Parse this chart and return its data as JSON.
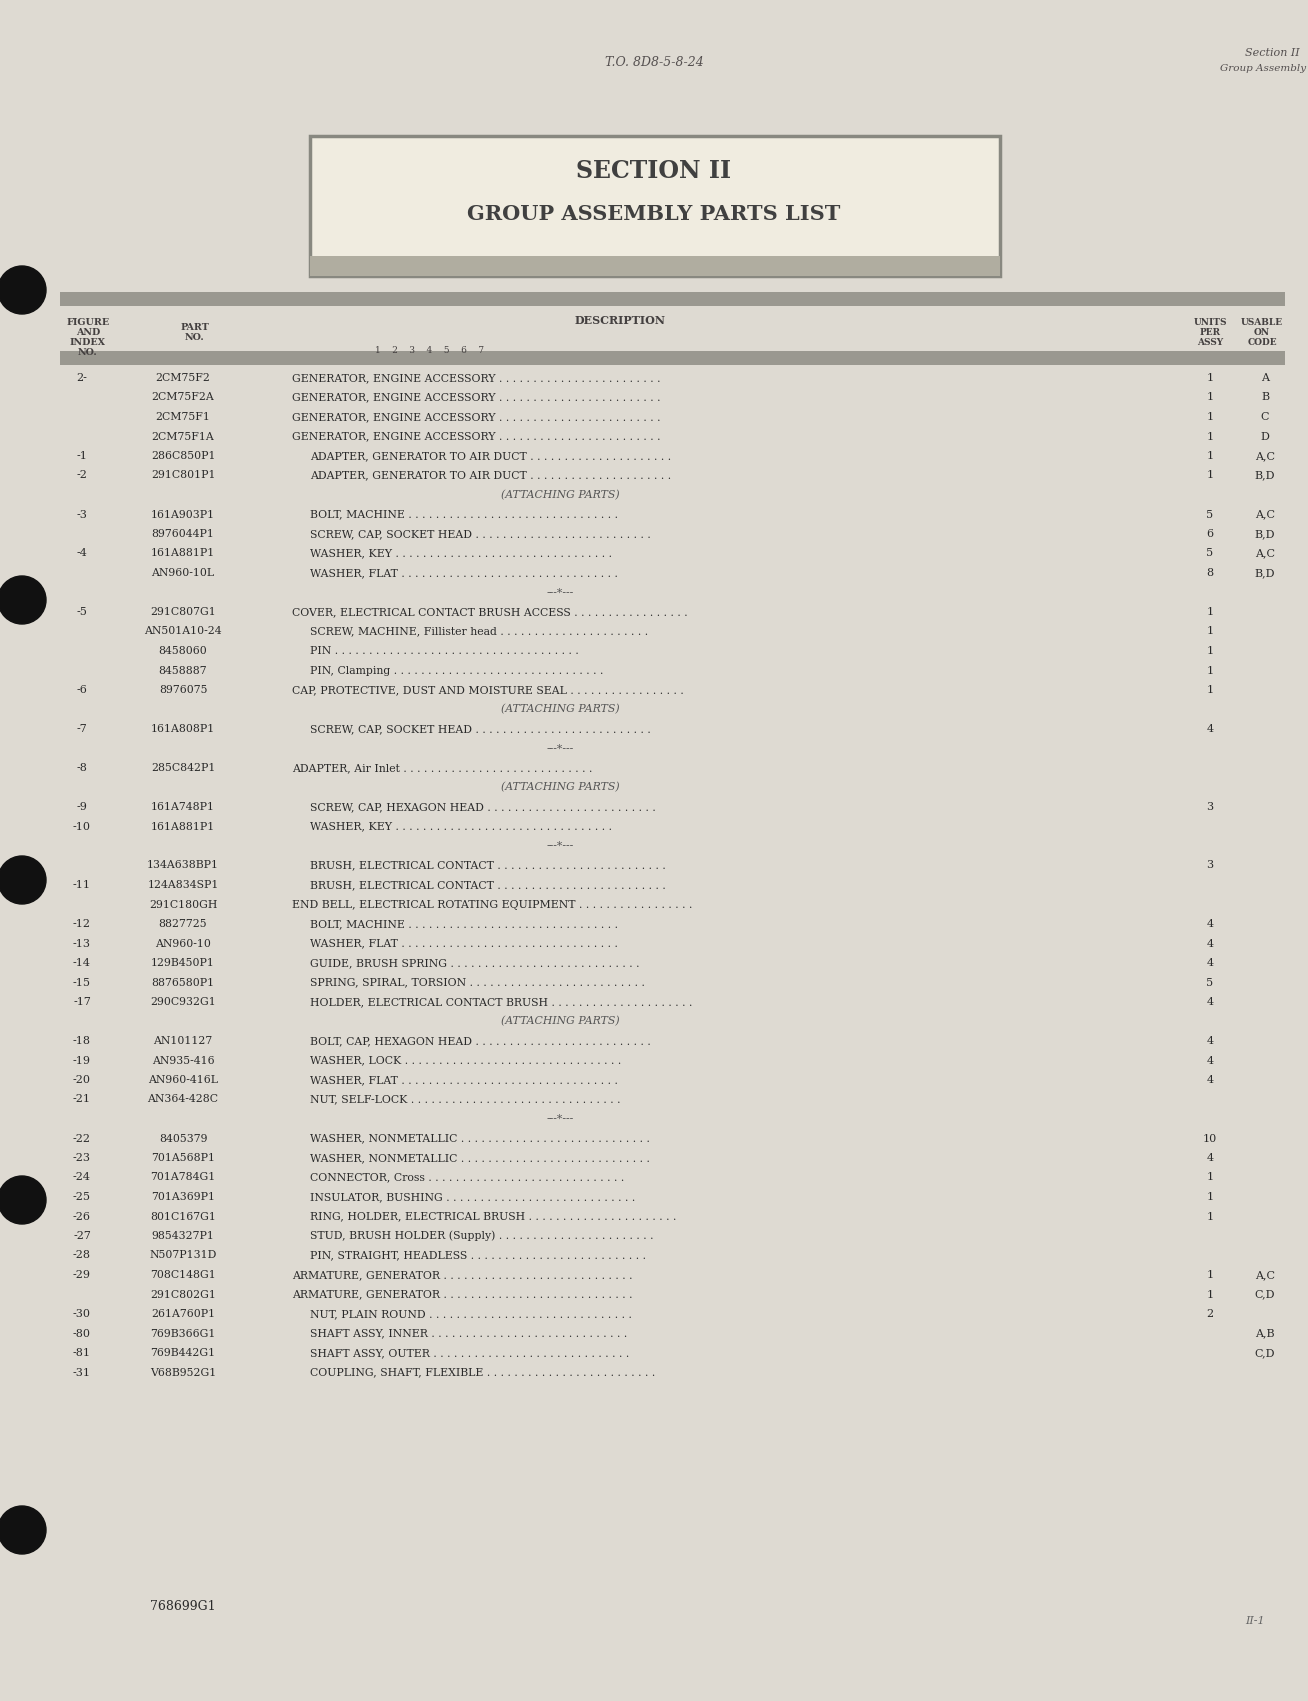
{
  "page_color": "#dedad2",
  "header_center": "T.O. 8D8-5-8-24",
  "header_right_line1": "Section II",
  "header_right_line2": "Group Assembly Parts List",
  "section_title_line1": "SECTION II",
  "section_title_line2": "GROUP ASSEMBLY PARTS LIST",
  "rows": [
    {
      "fig": "2-",
      "part": "2CM75F2",
      "indent": 0,
      "desc": "GENERATOR, ENGINE ACCESSORY . . . . . . . . . . . . . . . . . . . . . . . .",
      "qty": "1",
      "code": "A"
    },
    {
      "fig": "",
      "part": "2CM75F2A",
      "indent": 0,
      "desc": "GENERATOR, ENGINE ACCESSORY . . . . . . . . . . . . . . . . . . . . . . . .",
      "qty": "1",
      "code": "B"
    },
    {
      "fig": "",
      "part": "2CM75F1",
      "indent": 0,
      "desc": "GENERATOR, ENGINE ACCESSORY . . . . . . . . . . . . . . . . . . . . . . . .",
      "qty": "1",
      "code": "C"
    },
    {
      "fig": "",
      "part": "2CM75F1A",
      "indent": 0,
      "desc": "GENERATOR, ENGINE ACCESSORY . . . . . . . . . . . . . . . . . . . . . . . .",
      "qty": "1",
      "code": "D"
    },
    {
      "fig": "-1",
      "part": "286C850P1",
      "indent": 1,
      "desc": "ADAPTER, GENERATOR TO AIR DUCT . . . . . . . . . . . . . . . . . . . . .",
      "qty": "1",
      "code": "A,C"
    },
    {
      "fig": "-2",
      "part": "291C801P1",
      "indent": 1,
      "desc": "ADAPTER, GENERATOR TO AIR DUCT . . . . . . . . . . . . . . . . . . . . .",
      "qty": "1",
      "code": "B,D"
    },
    {
      "fig": "",
      "part": "",
      "indent": 3,
      "desc": "(ATTACHING PARTS)",
      "qty": "",
      "code": ""
    },
    {
      "fig": "-3",
      "part": "161A903P1",
      "indent": 1,
      "desc": "BOLT, MACHINE . . . . . . . . . . . . . . . . . . . . . . . . . . . . . . .",
      "qty": "5",
      "code": "A,C"
    },
    {
      "fig": "",
      "part": "8976044P1",
      "indent": 1,
      "desc": "SCREW, CAP, SOCKET HEAD . . . . . . . . . . . . . . . . . . . . . . . . . .",
      "qty": "6",
      "code": "B,D"
    },
    {
      "fig": "-4",
      "part": "161A881P1",
      "indent": 1,
      "desc": "WASHER, KEY . . . . . . . . . . . . . . . . . . . . . . . . . . . . . . . .",
      "qty": "5",
      "code": "A,C"
    },
    {
      "fig": "",
      "part": "AN960-10L",
      "indent": 1,
      "desc": "WASHER, FLAT . . . . . . . . . . . . . . . . . . . . . . . . . . . . . . . .",
      "qty": "8",
      "code": "B,D"
    },
    {
      "fig": "",
      "part": "",
      "indent": 3,
      "desc": "---*---",
      "qty": "",
      "code": ""
    },
    {
      "fig": "-5",
      "part": "291C807G1",
      "indent": 0,
      "desc": "COVER, ELECTRICAL CONTACT BRUSH ACCESS . . . . . . . . . . . . . . . . .",
      "qty": "1",
      "code": ""
    },
    {
      "fig": "",
      "part": "AN501A10-24",
      "indent": 1,
      "desc": "SCREW, MACHINE, Fillister head . . . . . . . . . . . . . . . . . . . . . .",
      "qty": "1",
      "code": ""
    },
    {
      "fig": "",
      "part": "8458060",
      "indent": 1,
      "desc": "PIN . . . . . . . . . . . . . . . . . . . . . . . . . . . . . . . . . . . .",
      "qty": "1",
      "code": ""
    },
    {
      "fig": "",
      "part": "8458887",
      "indent": 1,
      "desc": "PIN, Clamping . . . . . . . . . . . . . . . . . . . . . . . . . . . . . . .",
      "qty": "1",
      "code": ""
    },
    {
      "fig": "-6",
      "part": "8976075",
      "indent": 0,
      "desc": "CAP, PROTECTIVE, DUST AND MOISTURE SEAL . . . . . . . . . . . . . . . . .",
      "qty": "1",
      "code": ""
    },
    {
      "fig": "",
      "part": "",
      "indent": 3,
      "desc": "(ATTACHING PARTS)",
      "qty": "",
      "code": ""
    },
    {
      "fig": "-7",
      "part": "161A808P1",
      "indent": 1,
      "desc": "SCREW, CAP, SOCKET HEAD . . . . . . . . . . . . . . . . . . . . . . . . . .",
      "qty": "4",
      "code": ""
    },
    {
      "fig": "",
      "part": "",
      "indent": 3,
      "desc": "---*---",
      "qty": "",
      "code": ""
    },
    {
      "fig": "-8",
      "part": "285C842P1",
      "indent": 0,
      "desc": "ADAPTER, Air Inlet . . . . . . . . . . . . . . . . . . . . . . . . . . . .",
      "qty": "",
      "code": ""
    },
    {
      "fig": "",
      "part": "",
      "indent": 3,
      "desc": "(ATTACHING PARTS)",
      "qty": "",
      "code": ""
    },
    {
      "fig": "-9",
      "part": "161A748P1",
      "indent": 1,
      "desc": "SCREW, CAP, HEXAGON HEAD . . . . . . . . . . . . . . . . . . . . . . . . .",
      "qty": "3",
      "code": ""
    },
    {
      "fig": "-10",
      "part": "161A881P1",
      "indent": 1,
      "desc": "WASHER, KEY . . . . . . . . . . . . . . . . . . . . . . . . . . . . . . . .",
      "qty": "",
      "code": ""
    },
    {
      "fig": "",
      "part": "",
      "indent": 3,
      "desc": "---*---",
      "qty": "",
      "code": ""
    },
    {
      "fig": "",
      "part": "134A638BP1",
      "indent": 1,
      "desc": "BRUSH, ELECTRICAL CONTACT . . . . . . . . . . . . . . . . . . . . . . . . .",
      "qty": "3",
      "code": ""
    },
    {
      "fig": "-11",
      "part": "124A834SP1",
      "indent": 1,
      "desc": "BRUSH, ELECTRICAL CONTACT . . . . . . . . . . . . . . . . . . . . . . . . .",
      "qty": "",
      "code": ""
    },
    {
      "fig": "",
      "part": "291C180GH",
      "indent": 0,
      "desc": "END BELL, ELECTRICAL ROTATING EQUIPMENT . . . . . . . . . . . . . . . . .",
      "qty": "",
      "code": ""
    },
    {
      "fig": "-12",
      "part": "8827725",
      "indent": 1,
      "desc": "BOLT, MACHINE . . . . . . . . . . . . . . . . . . . . . . . . . . . . . . .",
      "qty": "4",
      "code": ""
    },
    {
      "fig": "-13",
      "part": "AN960-10",
      "indent": 1,
      "desc": "WASHER, FLAT . . . . . . . . . . . . . . . . . . . . . . . . . . . . . . . .",
      "qty": "4",
      "code": ""
    },
    {
      "fig": "-14",
      "part": "129B450P1",
      "indent": 1,
      "desc": "GUIDE, BRUSH SPRING . . . . . . . . . . . . . . . . . . . . . . . . . . . .",
      "qty": "4",
      "code": ""
    },
    {
      "fig": "-15",
      "part": "8876580P1",
      "indent": 1,
      "desc": "SPRING, SPIRAL, TORSION . . . . . . . . . . . . . . . . . . . . . . . . . .",
      "qty": "5",
      "code": ""
    },
    {
      "fig": "-17",
      "part": "290C932G1",
      "indent": 1,
      "desc": "HOLDER, ELECTRICAL CONTACT BRUSH . . . . . . . . . . . . . . . . . . . . .",
      "qty": "4",
      "code": ""
    },
    {
      "fig": "",
      "part": "",
      "indent": 3,
      "desc": "(ATTACHING PARTS)",
      "qty": "",
      "code": ""
    },
    {
      "fig": "-18",
      "part": "AN101127",
      "indent": 1,
      "desc": "BOLT, CAP, HEXAGON HEAD . . . . . . . . . . . . . . . . . . . . . . . . . .",
      "qty": "4",
      "code": ""
    },
    {
      "fig": "-19",
      "part": "AN935-416",
      "indent": 1,
      "desc": "WASHER, LOCK . . . . . . . . . . . . . . . . . . . . . . . . . . . . . . . .",
      "qty": "4",
      "code": ""
    },
    {
      "fig": "-20",
      "part": "AN960-416L",
      "indent": 1,
      "desc": "WASHER, FLAT . . . . . . . . . . . . . . . . . . . . . . . . . . . . . . . .",
      "qty": "4",
      "code": ""
    },
    {
      "fig": "-21",
      "part": "AN364-428C",
      "indent": 1,
      "desc": "NUT, SELF-LOCK . . . . . . . . . . . . . . . . . . . . . . . . . . . . . . .",
      "qty": "",
      "code": ""
    },
    {
      "fig": "",
      "part": "",
      "indent": 3,
      "desc": "---*---",
      "qty": "",
      "code": ""
    },
    {
      "fig": "-22",
      "part": "8405379",
      "indent": 1,
      "desc": "WASHER, NONMETALLIC . . . . . . . . . . . . . . . . . . . . . . . . . . . .",
      "qty": "10",
      "code": ""
    },
    {
      "fig": "-23",
      "part": "701A568P1",
      "indent": 1,
      "desc": "WASHER, NONMETALLIC . . . . . . . . . . . . . . . . . . . . . . . . . . . .",
      "qty": "4",
      "code": ""
    },
    {
      "fig": "-24",
      "part": "701A784G1",
      "indent": 1,
      "desc": "CONNECTOR, Cross . . . . . . . . . . . . . . . . . . . . . . . . . . . . .",
      "qty": "1",
      "code": ""
    },
    {
      "fig": "-25",
      "part": "701A369P1",
      "indent": 1,
      "desc": "INSULATOR, BUSHING . . . . . . . . . . . . . . . . . . . . . . . . . . . .",
      "qty": "1",
      "code": ""
    },
    {
      "fig": "-26",
      "part": "801C167G1",
      "indent": 1,
      "desc": "RING, HOLDER, ELECTRICAL BRUSH . . . . . . . . . . . . . . . . . . . . . .",
      "qty": "1",
      "code": ""
    },
    {
      "fig": "-27",
      "part": "9854327P1",
      "indent": 1,
      "desc": "STUD, BRUSH HOLDER (Supply) . . . . . . . . . . . . . . . . . . . . . . .",
      "qty": "",
      "code": ""
    },
    {
      "fig": "-28",
      "part": "N507P131D",
      "indent": 1,
      "desc": "PIN, STRAIGHT, HEADLESS . . . . . . . . . . . . . . . . . . . . . . . . . .",
      "qty": "",
      "code": ""
    },
    {
      "fig": "-29",
      "part": "708C148G1",
      "indent": 0,
      "desc": "ARMATURE, GENERATOR . . . . . . . . . . . . . . . . . . . . . . . . . . . .",
      "qty": "1",
      "code": "A,C"
    },
    {
      "fig": "",
      "part": "291C802G1",
      "indent": 0,
      "desc": "ARMATURE, GENERATOR . . . . . . . . . . . . . . . . . . . . . . . . . . . .",
      "qty": "1",
      "code": "C,D"
    },
    {
      "fig": "-30",
      "part": "261A760P1",
      "indent": 1,
      "desc": "NUT, PLAIN ROUND . . . . . . . . . . . . . . . . . . . . . . . . . . . . . .",
      "qty": "2",
      "code": ""
    },
    {
      "fig": "-80",
      "part": "769B366G1",
      "indent": 1,
      "desc": "SHAFT ASSY, INNER . . . . . . . . . . . . . . . . . . . . . . . . . . . . .",
      "qty": "",
      "code": "A,B"
    },
    {
      "fig": "-81",
      "part": "769B442G1",
      "indent": 1,
      "desc": "SHAFT ASSY, OUTER . . . . . . . . . . . . . . . . . . . . . . . . . . . . .",
      "qty": "",
      "code": "C,D"
    },
    {
      "fig": "-31",
      "part": "V68B952G1",
      "indent": 1,
      "desc": "COUPLING, SHAFT, FLEXIBLE . . . . . . . . . . . . . . . . . . . . . . . . .",
      "qty": "",
      "code": ""
    }
  ],
  "footer_text": "768699G1",
  "page_num": "II-1",
  "bar_color": "#9a9890",
  "title_box_bg": "#f0ece0",
  "title_box_border": "#888880",
  "title_shadow": "#b0ada0",
  "text_color": "#2a2a2a",
  "header_color": "#555050",
  "col_header_color": "#444040"
}
